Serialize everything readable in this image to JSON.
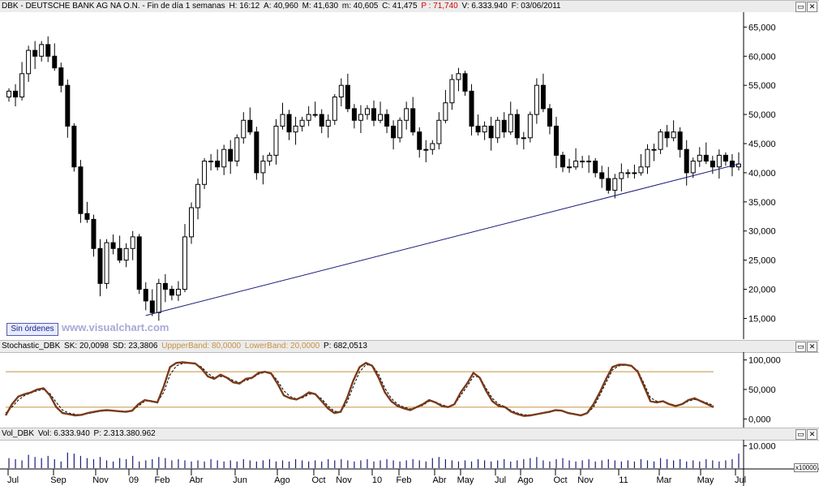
{
  "main_header": {
    "symbol": "DBK - DEUTSCHE BANK AG NA O.N. - Fin de día 1 semanas",
    "hour": "H: 16:12",
    "open": "A: 40,960",
    "high": "M: 41,630",
    "low": "m: 40,605",
    "close": "C: 41,475",
    "position": "P : 71,740",
    "volume": "V: 6.333.940",
    "date": "F: 03/06/2011"
  },
  "stoch_header": {
    "name": "Stochastic_DBK",
    "sk": "SK: 20,0098",
    "sd": "SD: 23,3806",
    "upper": "UppperBand: 80,0000",
    "lower": "LowerBand: 20,0000",
    "p": "P: 682,0513"
  },
  "vol_header": {
    "name": "Vol_DBK",
    "vol": "Vol: 6.333.940",
    "p": "P: 2.313.380.962"
  },
  "buttons": {
    "minimize": "▭",
    "close": "✕"
  },
  "orders_button": "Sin órdenes",
  "watermark": "www.visualchart.com",
  "vol_multiplier": "x10000",
  "colors": {
    "up": "#ffffff",
    "down": "#000000",
    "trend": "#1a1a7a",
    "sk": "#7a3a1a",
    "band": "#c89040",
    "vol": "#1a1a7a"
  },
  "chart_data": [
    {
      "type": "candlestick",
      "y_ticks": [
        "65,000",
        "60,000",
        "55,000",
        "50,000",
        "45,000",
        "40,000",
        "35,000",
        "30,000",
        "25,000",
        "20,000",
        "15,000"
      ],
      "ylim": [
        12,
        67
      ],
      "x_ticks": [
        "Jul",
        "Sep",
        "Nov",
        "09",
        "Feb",
        "Abr",
        "Jun",
        "Ago",
        "Oct",
        "Nov",
        "10",
        "Feb",
        "Abr",
        "May",
        "Jul",
        "Ago",
        "Oct",
        "Nov",
        "11",
        "Mar",
        "May",
        "Jul"
      ],
      "close": [
        54,
        53,
        57,
        61,
        60,
        62,
        60,
        58,
        55,
        48,
        41,
        33,
        32,
        27,
        21,
        28,
        27,
        25,
        27,
        29,
        20,
        18,
        16,
        21,
        20,
        19,
        20,
        29,
        34,
        38,
        42,
        42,
        41,
        44,
        42,
        46,
        49,
        47,
        40,
        42,
        43,
        48,
        50,
        47,
        48,
        49,
        50,
        50,
        48,
        49,
        53,
        55,
        51,
        49,
        50,
        51,
        49,
        50,
        48,
        46,
        49,
        51,
        47,
        44,
        44,
        45,
        49,
        52,
        56,
        57,
        54,
        48,
        47,
        48,
        46,
        49,
        47,
        50,
        46,
        46,
        50,
        55,
        51,
        48,
        43,
        41,
        41,
        42,
        42,
        42,
        40,
        39,
        37,
        39,
        40,
        40,
        40,
        41,
        44,
        44,
        47,
        46,
        47,
        44,
        40,
        42,
        43,
        42,
        41,
        43,
        42,
        41,
        41.5
      ],
      "trendline": {
        "from": {
          "index": 21,
          "value": 15.5
        },
        "to": {
          "index": 112,
          "value": 41.5
        }
      }
    },
    {
      "type": "line",
      "y_ticks": [
        "100,000",
        "50,000",
        "0,000"
      ],
      "ylim": [
        -5,
        105
      ],
      "bands": [
        80,
        20
      ],
      "series": [
        {
          "name": "SK",
          "values": [
            6,
            25,
            38,
            42,
            45,
            50,
            52,
            40,
            20,
            10,
            8,
            6,
            7,
            10,
            12,
            14,
            15,
            14,
            13,
            12,
            14,
            25,
            32,
            30,
            28,
            55,
            88,
            95,
            96,
            95,
            94,
            85,
            72,
            68,
            75,
            70,
            62,
            60,
            68,
            70,
            78,
            80,
            77,
            60,
            40,
            35,
            33,
            38,
            45,
            42,
            30,
            18,
            10,
            12,
            35,
            65,
            88,
            95,
            90,
            70,
            45,
            30,
            22,
            18,
            15,
            20,
            25,
            32,
            28,
            22,
            20,
            25,
            45,
            60,
            78,
            70,
            48,
            30,
            22,
            20,
            12,
            8,
            5,
            6,
            8,
            10,
            12,
            15,
            14,
            10,
            8,
            6,
            10,
            25,
            45,
            68,
            88,
            92,
            92,
            90,
            80,
            55,
            30,
            28,
            30,
            25,
            22,
            25,
            32,
            35,
            30,
            25,
            20
          ]
        },
        {
          "name": "SD",
          "values": [
            10,
            20,
            32,
            40,
            44,
            48,
            50,
            43,
            28,
            15,
            10,
            8,
            7,
            9,
            11,
            13,
            14,
            14,
            13,
            13,
            14,
            22,
            30,
            31,
            29,
            45,
            75,
            90,
            94,
            95,
            94,
            88,
            77,
            70,
            72,
            71,
            65,
            62,
            65,
            69,
            76,
            79,
            78,
            65,
            48,
            38,
            34,
            36,
            42,
            42,
            34,
            22,
            13,
            12,
            28,
            55,
            80,
            92,
            91,
            76,
            52,
            35,
            25,
            20,
            17,
            19,
            23,
            30,
            29,
            24,
            21,
            24,
            40,
            55,
            72,
            71,
            52,
            35,
            25,
            21,
            14,
            10,
            7,
            7,
            8,
            10,
            11,
            14,
            14,
            11,
            9,
            7,
            9,
            20,
            40,
            62,
            83,
            90,
            91,
            90,
            82,
            60,
            36,
            30,
            30,
            26,
            23,
            24,
            30,
            33,
            31,
            27,
            23
          ]
        }
      ]
    },
    {
      "type": "bar",
      "name": "Volume",
      "y_ticks": [
        "10.000"
      ],
      "ylim": [
        0,
        12000
      ],
      "values": [
        4500,
        4000,
        3500,
        6000,
        5000,
        4500,
        5500,
        4000,
        3000,
        7000,
        6500,
        5500,
        4500,
        4000,
        5000,
        3500,
        3000,
        4500,
        4000,
        5500,
        3000,
        3500,
        4000,
        5000,
        4500,
        3500,
        4000,
        3500,
        3000,
        3500,
        3000,
        4000,
        3500,
        3000,
        3500,
        3000,
        4000,
        3500,
        3000,
        3500,
        4000,
        3000,
        3500,
        3000,
        4000,
        3500,
        3000,
        3500,
        3000,
        4000,
        3500,
        4000,
        3500,
        3000,
        3500,
        4000,
        3000,
        3500,
        4000,
        3500,
        3000,
        3500,
        4000,
        3500,
        3000,
        4500,
        5000,
        4000,
        3500,
        3000,
        3500,
        3000,
        4000,
        3500,
        3000,
        3500,
        4000,
        3000,
        3500,
        4000,
        4500,
        5000,
        3500,
        3000,
        4000,
        4500,
        3500,
        3000,
        3500,
        4000,
        3000,
        3500,
        4000,
        3500,
        3000,
        3500,
        3000,
        4000,
        3500,
        3000,
        4500,
        4000,
        3500,
        4000,
        3000,
        3500,
        3000,
        4000,
        3500,
        3000,
        3500,
        4000,
        6500
      ]
    }
  ]
}
